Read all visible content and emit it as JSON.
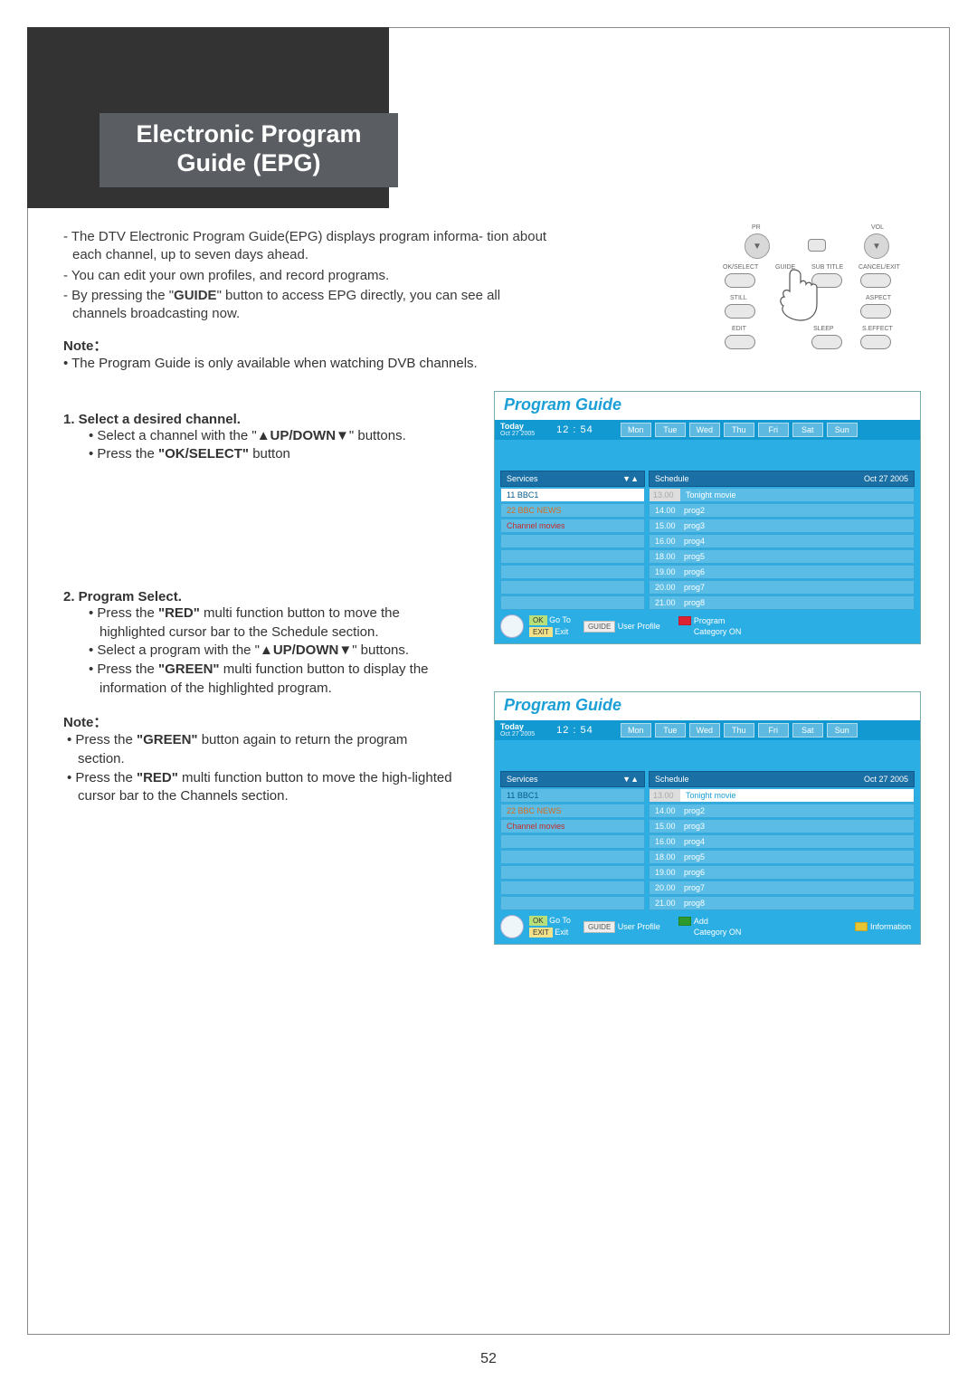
{
  "page": {
    "number": "52"
  },
  "title": {
    "line1": "Electronic Program",
    "line2": "Guide (EPG)"
  },
  "intro": {
    "p1": "- The DTV Electronic Program Guide(EPG) displays program informa-  tion about each channel, up to seven days ahead.",
    "p2": "- You can edit your own profiles, and record programs.",
    "p3a": "- By pressing the \"",
    "p3b": "GUIDE",
    "p3c": "\" button to access EPG directly, you can see all channels broadcasting now."
  },
  "note1": {
    "label": "Note：",
    "text": "• The Program Guide is only available when watching DVB channels."
  },
  "step1": {
    "head": "1. Select a desired channel.",
    "li1a": "• Select a channel with the \"",
    "li1b": "▲UP/DOWN▼",
    "li1c": "\" buttons.",
    "li2a": "• Press the ",
    "li2b": "\"OK/SELECT\"",
    "li2c": " button"
  },
  "step2": {
    "head": "2. Program Select.",
    "li1a": "• Press the ",
    "li1b": "\"RED\"",
    "li1c": " multi function button to move the highlighted cursor bar to the Schedule section.",
    "li2a": "• Select a program with the \"",
    "li2b": "▲UP/DOWN▼",
    "li2c": "\" buttons.",
    "li3a": "• Press the ",
    "li3b": "\"GREEN\"",
    "li3c": " multi function button to display the information of the highlighted program."
  },
  "note2": {
    "label": "Note：",
    "li1a": "• Press the ",
    "li1b": "\"GREEN\"",
    "li1c": " button again to return the program section.",
    "li2a": "• Press the ",
    "li2b": "\"RED\"",
    "li2c": " multi function button to move the high-lighted cursor bar to the Channels section."
  },
  "remote": {
    "pr": "PR",
    "vol": "VOL",
    "okselect": "OK/SELECT",
    "guide": "GUIDE",
    "subtitle": "SUB TITLE",
    "cancel": "CANCEL/EXIT",
    "still": "STILL",
    "aspect": "ASPECT",
    "edit": "EDIT",
    "sleep": "SLEEP",
    "seffect": "S.EFFECT"
  },
  "epg": {
    "title": "Program Guide",
    "today": "Today",
    "date": "Oct 27  2005",
    "time": "12 : 54",
    "days": [
      "Mon",
      "Tue",
      "Wed",
      "Thu",
      "Fri",
      "Sat",
      "Sun"
    ],
    "services_hdr": "Services",
    "schedule_hdr": "Schedule",
    "schedule_date": "Oct 27  2005",
    "services": [
      {
        "label": "11 BBC1",
        "cls": "bbc1"
      },
      {
        "label": "22 BBC NEWS",
        "cls": "bbcnews"
      },
      {
        "label": "Channel movies",
        "cls": "cmovies"
      }
    ],
    "schedule": [
      {
        "t": "13.00",
        "p": "Tonight movie"
      },
      {
        "t": "14.00",
        "p": "prog2"
      },
      {
        "t": "15.00",
        "p": "prog3"
      },
      {
        "t": "16.00",
        "p": "prog4"
      },
      {
        "t": "18.00",
        "p": "prog5"
      },
      {
        "t": "19.00",
        "p": "prog6"
      },
      {
        "t": "20.00",
        "p": "prog7"
      },
      {
        "t": "21.00",
        "p": "prog8"
      }
    ],
    "footer": {
      "ok": "OK",
      "goto": "Go To",
      "exit_pill": "EXIT",
      "exit": "Exit",
      "guide": "GUIDE",
      "userprofile": "User Profile",
      "program": "Program",
      "category": "Category ON",
      "add": "Add",
      "information": "Information"
    },
    "colors": {
      "bg": "#2aaee3",
      "bar": "#1399d1",
      "hdr": "#1a6fa4",
      "row": "#5bbde6",
      "title": "#1b9fd6"
    }
  }
}
